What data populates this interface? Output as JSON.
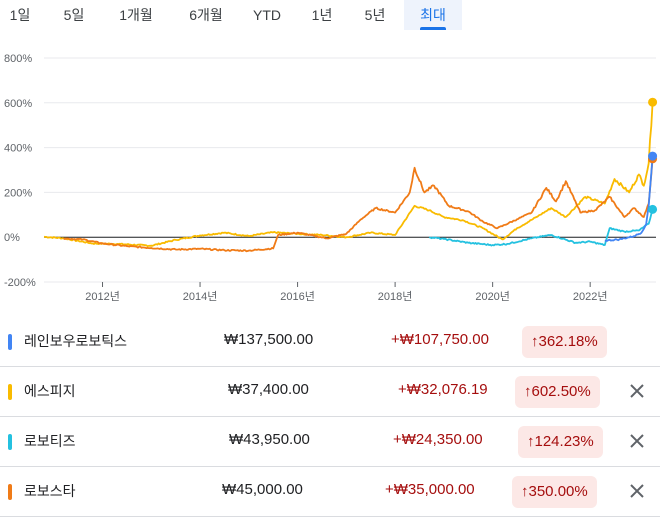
{
  "tabs": [
    {
      "label": "1일"
    },
    {
      "label": "5일"
    },
    {
      "label": "1개월"
    },
    {
      "label": "6개월"
    },
    {
      "label": "YTD"
    },
    {
      "label": "1년"
    },
    {
      "label": "5년"
    },
    {
      "label": "최대",
      "active": true
    }
  ],
  "chart_data": {
    "type": "line",
    "yticks": [
      "800%",
      "600%",
      "400%",
      "200%",
      "0%",
      "-200%"
    ],
    "ytick_values": [
      800,
      600,
      400,
      200,
      0,
      -200
    ],
    "xticks": [
      "2012년",
      "2014년",
      "2016년",
      "2018년",
      "2020년",
      "2022년"
    ],
    "xtick_values": [
      2012,
      2014,
      2016,
      2018,
      2020,
      2022
    ],
    "xlim": [
      2010.8,
      2023.35
    ],
    "ylim": [
      -200,
      800
    ],
    "series": [
      {
        "name": "에스피지",
        "color": "#f9bb00",
        "points": [
          [
            2010.8,
            2
          ],
          [
            2011.2,
            -5
          ],
          [
            2011.8,
            -28
          ],
          [
            2012.3,
            -30
          ],
          [
            2013,
            -38
          ],
          [
            2013.5,
            -12
          ],
          [
            2014,
            8
          ],
          [
            2014.5,
            20
          ],
          [
            2015,
            5
          ],
          [
            2015.5,
            22
          ],
          [
            2016,
            15
          ],
          [
            2016.5,
            10
          ],
          [
            2017,
            0
          ],
          [
            2017.5,
            20
          ],
          [
            2018,
            10
          ],
          [
            2018.4,
            140
          ],
          [
            2018.7,
            120
          ],
          [
            2019,
            90
          ],
          [
            2019.4,
            75
          ],
          [
            2019.8,
            40
          ],
          [
            2020.2,
            -10
          ],
          [
            2020.5,
            40
          ],
          [
            2020.9,
            90
          ],
          [
            2021.2,
            130
          ],
          [
            2021.5,
            90
          ],
          [
            2021.9,
            180
          ],
          [
            2022.3,
            150
          ],
          [
            2022.5,
            260
          ],
          [
            2022.8,
            200
          ],
          [
            2023.0,
            280
          ],
          [
            2023.1,
            230
          ],
          [
            2023.2,
            330
          ],
          [
            2023.28,
            602.5
          ]
        ]
      },
      {
        "name": "로보스타",
        "color": "#f07b17",
        "points": [
          [
            2011.2,
            -5
          ],
          [
            2011.6,
            -10
          ],
          [
            2012,
            -28
          ],
          [
            2012.5,
            -40
          ],
          [
            2013,
            -48
          ],
          [
            2013.5,
            -55
          ],
          [
            2014,
            -52
          ],
          [
            2014.5,
            -58
          ],
          [
            2015,
            -60
          ],
          [
            2015.5,
            -50
          ],
          [
            2015.6,
            10
          ],
          [
            2016,
            20
          ],
          [
            2016.6,
            -5
          ],
          [
            2017,
            15
          ],
          [
            2017.3,
            80
          ],
          [
            2017.6,
            130
          ],
          [
            2018,
            110
          ],
          [
            2018.3,
            200
          ],
          [
            2018.4,
            310
          ],
          [
            2018.6,
            200
          ],
          [
            2018.8,
            230
          ],
          [
            2019.1,
            140
          ],
          [
            2019.5,
            115
          ],
          [
            2019.8,
            70
          ],
          [
            2020.1,
            40
          ],
          [
            2020.5,
            80
          ],
          [
            2020.8,
            110
          ],
          [
            2021.1,
            220
          ],
          [
            2021.3,
            160
          ],
          [
            2021.5,
            250
          ],
          [
            2021.8,
            110
          ],
          [
            2022.1,
            120
          ],
          [
            2022.4,
            180
          ],
          [
            2022.7,
            90
          ],
          [
            2022.9,
            130
          ],
          [
            2023.1,
            90
          ],
          [
            2023.2,
            150
          ],
          [
            2023.28,
            350
          ]
        ]
      },
      {
        "name": "로보티즈",
        "color": "#24c1e0",
        "points": [
          [
            2018.7,
            0
          ],
          [
            2019,
            -8
          ],
          [
            2019.5,
            -25
          ],
          [
            2020,
            -35
          ],
          [
            2020.3,
            -30
          ],
          [
            2020.8,
            -5
          ],
          [
            2021.2,
            10
          ],
          [
            2021.7,
            -25
          ],
          [
            2022,
            -20
          ],
          [
            2022.3,
            -35
          ],
          [
            2022.4,
            40
          ],
          [
            2022.7,
            25
          ],
          [
            2023,
            30
          ],
          [
            2023.2,
            60
          ],
          [
            2023.28,
            124.23
          ]
        ]
      },
      {
        "name": "레인보우로보틱스",
        "color": "#4285f4",
        "points": [
          [
            2022.3,
            -15
          ],
          [
            2022.6,
            -10
          ],
          [
            2022.9,
            5
          ],
          [
            2023.05,
            20
          ],
          [
            2023.15,
            60
          ],
          [
            2023.2,
            140
          ],
          [
            2023.28,
            362.18
          ]
        ]
      }
    ]
  },
  "rows": [
    {
      "name": "레인보우로보틱스",
      "color": "#4285f4",
      "price": "₩137,500.00",
      "change": "+₩107,750.00",
      "percent": "362.18%",
      "removable": false
    },
    {
      "name": "에스피지",
      "color": "#f9bb00",
      "price": "₩37,400.00",
      "change": "+₩32,076.19",
      "percent": "602.50%",
      "removable": true
    },
    {
      "name": "로보티즈",
      "color": "#24c1e0",
      "price": "₩43,950.00",
      "change": "+₩24,350.00",
      "percent": "124.23%",
      "removable": true
    },
    {
      "name": "로보스타",
      "color": "#f07b17",
      "price": "₩45,000.00",
      "change": "+₩35,000.00",
      "percent": "350.00%",
      "removable": true
    }
  ]
}
